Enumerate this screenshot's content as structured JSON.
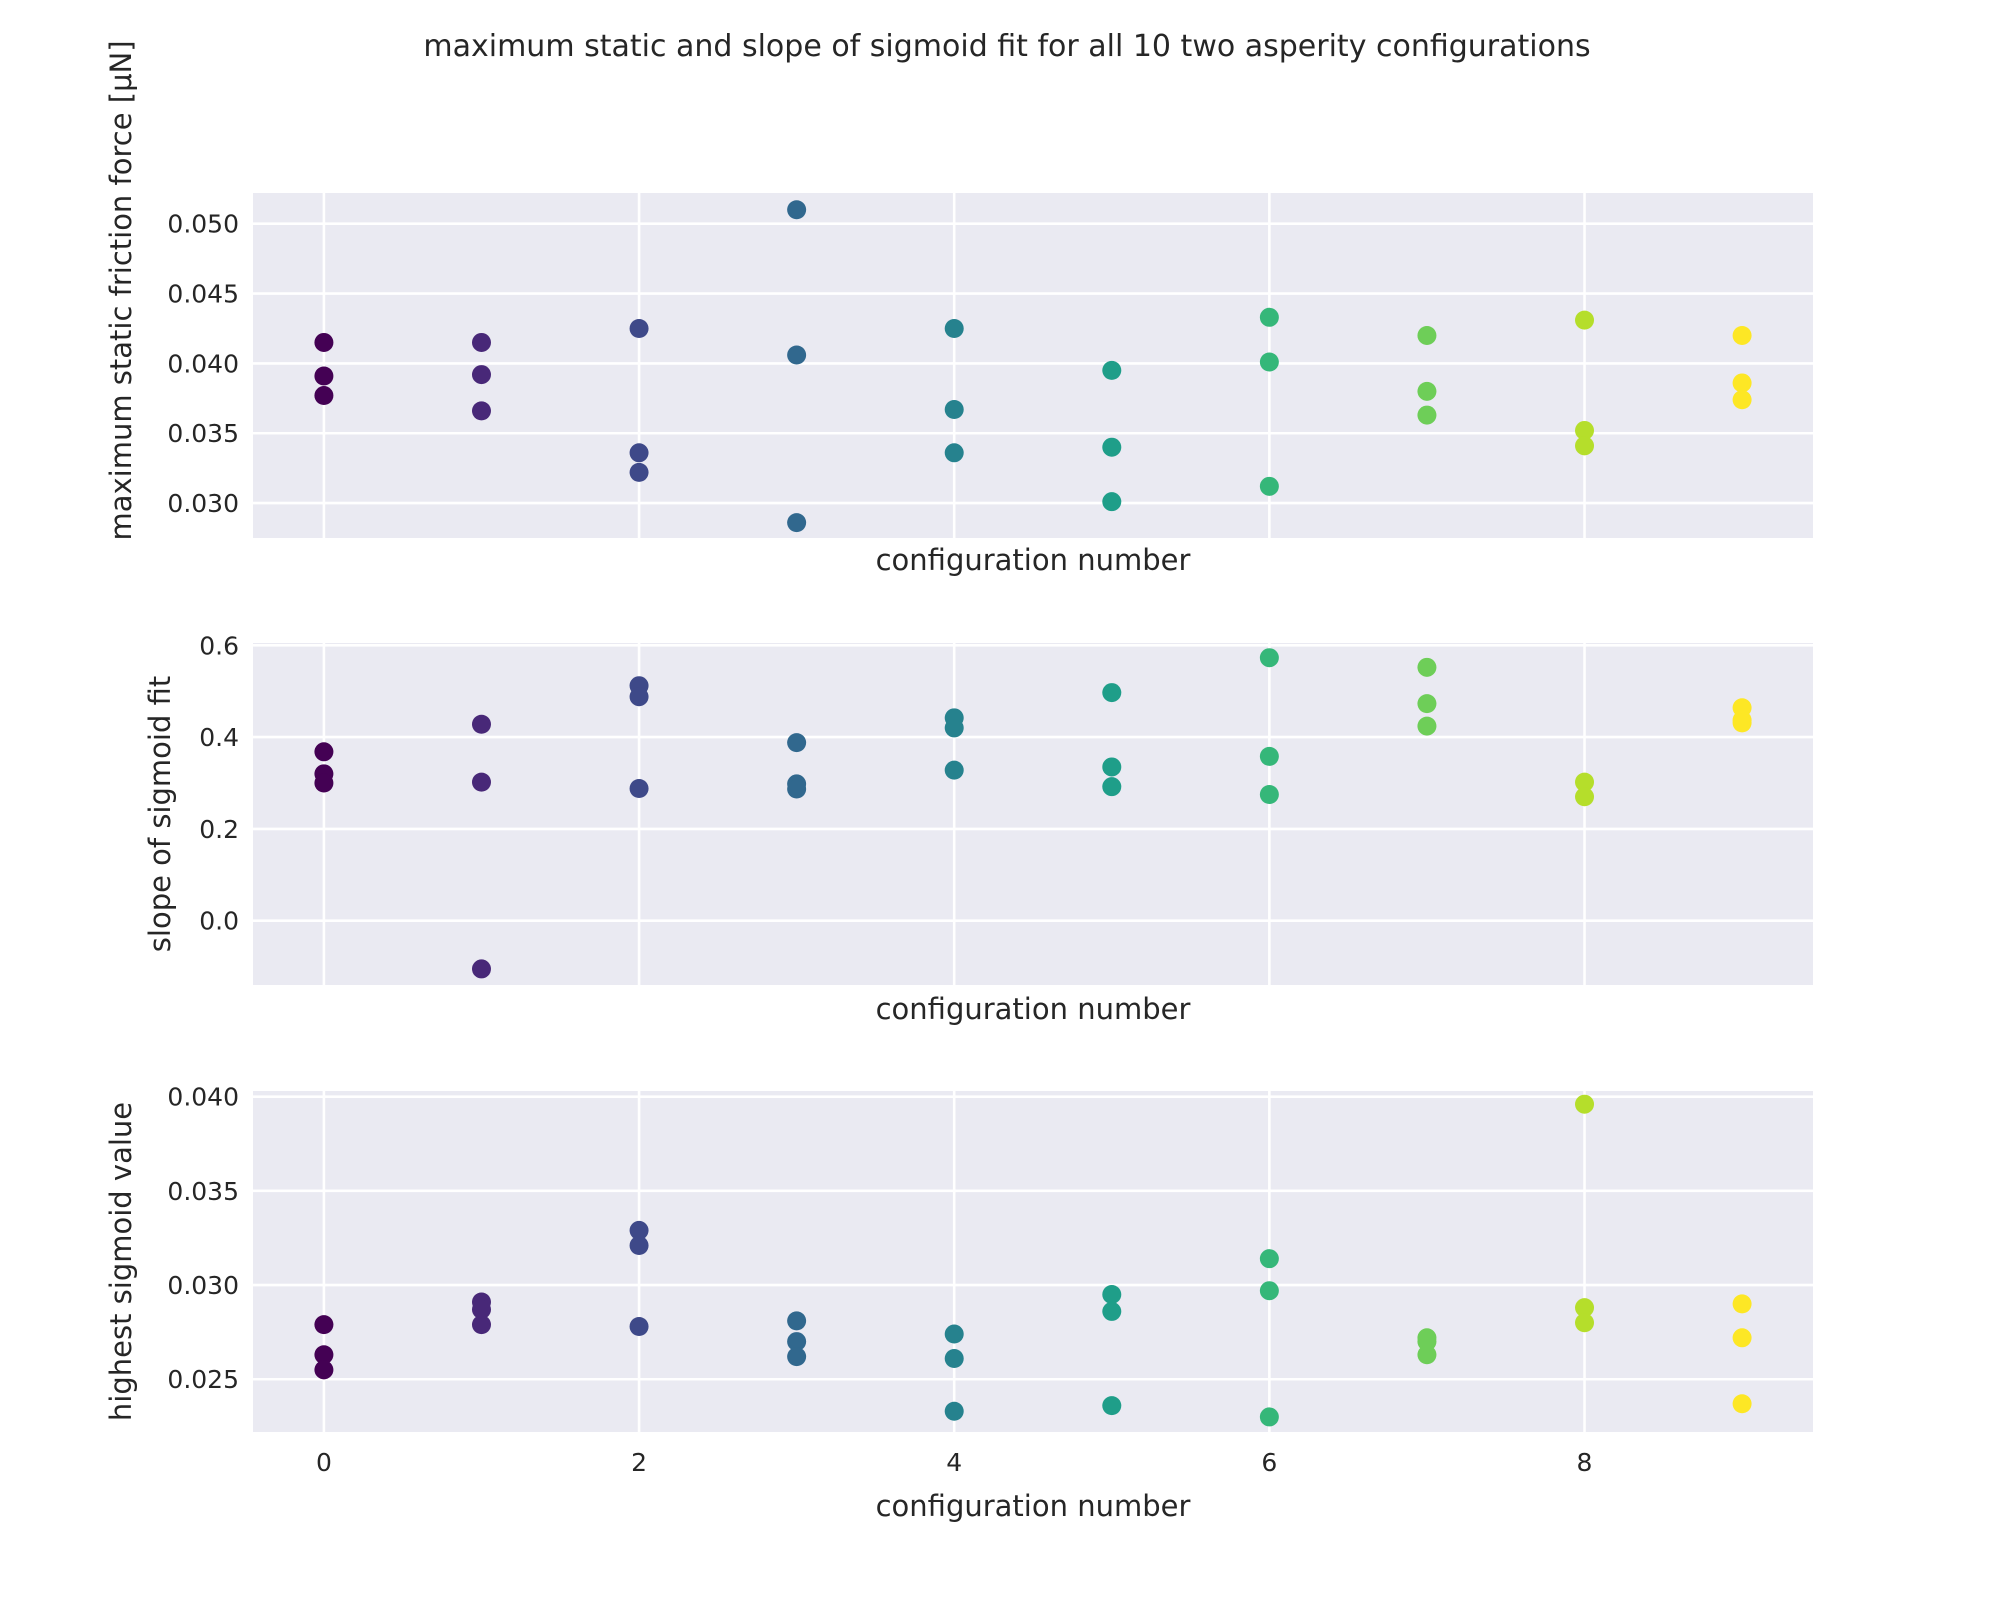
{
  "chart_data": [
    {
      "type": "scatter",
      "title": "maximum static and slope of sigmoid fit for all 10 two asperity configurations",
      "xlabel": "configuration number",
      "ylabel": "maximum static friction force [μN]",
      "xlim": [
        -0.45,
        9.45
      ],
      "ylim": [
        0.0275,
        0.0522
      ],
      "xticks": [
        0,
        2,
        4,
        6,
        8
      ],
      "yticks": [
        0.03,
        0.035,
        0.04,
        0.045,
        0.05
      ],
      "ytick_labels": [
        "0.030",
        "0.035",
        "0.040",
        "0.045",
        "0.050"
      ],
      "show_xtick_labels": false,
      "grid": true,
      "points": [
        {
          "x": 0,
          "y": 0.0415
        },
        {
          "x": 0,
          "y": 0.0391
        },
        {
          "x": 0,
          "y": 0.0377
        },
        {
          "x": 1,
          "y": 0.0415
        },
        {
          "x": 1,
          "y": 0.0392
        },
        {
          "x": 1,
          "y": 0.0366
        },
        {
          "x": 2,
          "y": 0.0425
        },
        {
          "x": 2,
          "y": 0.0336
        },
        {
          "x": 2,
          "y": 0.0322
        },
        {
          "x": 3,
          "y": 0.051
        },
        {
          "x": 3,
          "y": 0.0406
        },
        {
          "x": 3,
          "y": 0.0286
        },
        {
          "x": 4,
          "y": 0.0425
        },
        {
          "x": 4,
          "y": 0.0367
        },
        {
          "x": 4,
          "y": 0.0336
        },
        {
          "x": 5,
          "y": 0.0395
        },
        {
          "x": 5,
          "y": 0.034
        },
        {
          "x": 5,
          "y": 0.0301
        },
        {
          "x": 6,
          "y": 0.0433
        },
        {
          "x": 6,
          "y": 0.0401
        },
        {
          "x": 6,
          "y": 0.0312
        },
        {
          "x": 7,
          "y": 0.042
        },
        {
          "x": 7,
          "y": 0.038
        },
        {
          "x": 7,
          "y": 0.0363
        },
        {
          "x": 8,
          "y": 0.0431
        },
        {
          "x": 8,
          "y": 0.0352
        },
        {
          "x": 8,
          "y": 0.0341
        },
        {
          "x": 9,
          "y": 0.042
        },
        {
          "x": 9,
          "y": 0.0386
        },
        {
          "x": 9,
          "y": 0.0374
        }
      ]
    },
    {
      "type": "scatter",
      "xlabel": "configuration number",
      "ylabel": "slope of sigmoid fit",
      "xlim": [
        -0.45,
        9.45
      ],
      "ylim": [
        -0.14,
        0.605
      ],
      "xticks": [
        0,
        2,
        4,
        6,
        8
      ],
      "yticks": [
        0.0,
        0.2,
        0.4,
        0.6
      ],
      "ytick_labels": [
        "0.0",
        "0.2",
        "0.4",
        "0.6"
      ],
      "show_xtick_labels": false,
      "grid": true,
      "points": [
        {
          "x": 0,
          "y": 0.368
        },
        {
          "x": 0,
          "y": 0.32
        },
        {
          "x": 0,
          "y": 0.3
        },
        {
          "x": 1,
          "y": 0.428
        },
        {
          "x": 1,
          "y": 0.302
        },
        {
          "x": 1,
          "y": -0.105
        },
        {
          "x": 2,
          "y": 0.512
        },
        {
          "x": 2,
          "y": 0.488
        },
        {
          "x": 2,
          "y": 0.288
        },
        {
          "x": 3,
          "y": 0.388
        },
        {
          "x": 3,
          "y": 0.298
        },
        {
          "x": 3,
          "y": 0.287
        },
        {
          "x": 4,
          "y": 0.442
        },
        {
          "x": 4,
          "y": 0.42
        },
        {
          "x": 4,
          "y": 0.328
        },
        {
          "x": 5,
          "y": 0.497
        },
        {
          "x": 5,
          "y": 0.335
        },
        {
          "x": 5,
          "y": 0.292
        },
        {
          "x": 6,
          "y": 0.573
        },
        {
          "x": 6,
          "y": 0.358
        },
        {
          "x": 6,
          "y": 0.275
        },
        {
          "x": 7,
          "y": 0.552
        },
        {
          "x": 7,
          "y": 0.473
        },
        {
          "x": 7,
          "y": 0.424
        },
        {
          "x": 8,
          "y": 0.302
        },
        {
          "x": 8,
          "y": 0.27
        },
        {
          "x": 9,
          "y": 0.464
        },
        {
          "x": 9,
          "y": 0.437
        },
        {
          "x": 9,
          "y": 0.431
        }
      ]
    },
    {
      "type": "scatter",
      "xlabel": "configuration number",
      "ylabel": "highest sigmoid value",
      "xlim": [
        -0.45,
        9.45
      ],
      "ylim": [
        0.0222,
        0.0403
      ],
      "xticks": [
        0,
        2,
        4,
        6,
        8
      ],
      "xtick_labels": [
        "0",
        "2",
        "4",
        "6",
        "8"
      ],
      "yticks": [
        0.025,
        0.03,
        0.035,
        0.04
      ],
      "ytick_labels": [
        "0.025",
        "0.030",
        "0.035",
        "0.040"
      ],
      "show_xtick_labels": true,
      "grid": true,
      "points": [
        {
          "x": 0,
          "y": 0.0279
        },
        {
          "x": 0,
          "y": 0.0263
        },
        {
          "x": 0,
          "y": 0.0255
        },
        {
          "x": 1,
          "y": 0.0291
        },
        {
          "x": 1,
          "y": 0.0287
        },
        {
          "x": 1,
          "y": 0.0279
        },
        {
          "x": 2,
          "y": 0.0329
        },
        {
          "x": 2,
          "y": 0.0321
        },
        {
          "x": 2,
          "y": 0.0278
        },
        {
          "x": 3,
          "y": 0.0281
        },
        {
          "x": 3,
          "y": 0.027
        },
        {
          "x": 3,
          "y": 0.0262
        },
        {
          "x": 4,
          "y": 0.0274
        },
        {
          "x": 4,
          "y": 0.0261
        },
        {
          "x": 4,
          "y": 0.0233
        },
        {
          "x": 5,
          "y": 0.0295
        },
        {
          "x": 5,
          "y": 0.0286
        },
        {
          "x": 5,
          "y": 0.0236
        },
        {
          "x": 6,
          "y": 0.0314
        },
        {
          "x": 6,
          "y": 0.0297
        },
        {
          "x": 6,
          "y": 0.023
        },
        {
          "x": 7,
          "y": 0.0272
        },
        {
          "x": 7,
          "y": 0.027
        },
        {
          "x": 7,
          "y": 0.0263
        },
        {
          "x": 8,
          "y": 0.0396
        },
        {
          "x": 8,
          "y": 0.0288
        },
        {
          "x": 8,
          "y": 0.028
        },
        {
          "x": 9,
          "y": 0.029
        },
        {
          "x": 9,
          "y": 0.0272
        },
        {
          "x": 9,
          "y": 0.0237
        }
      ]
    }
  ],
  "colors": {
    "background": "#eaeaf2",
    "grid": "#ffffff",
    "text": "#262626",
    "colormap": "viridis",
    "config_colors": [
      "#440154",
      "#482878",
      "#3e4989",
      "#31688e",
      "#26828e",
      "#1f9e89",
      "#35b779",
      "#6ece58",
      "#b5de2b",
      "#fde725"
    ]
  }
}
